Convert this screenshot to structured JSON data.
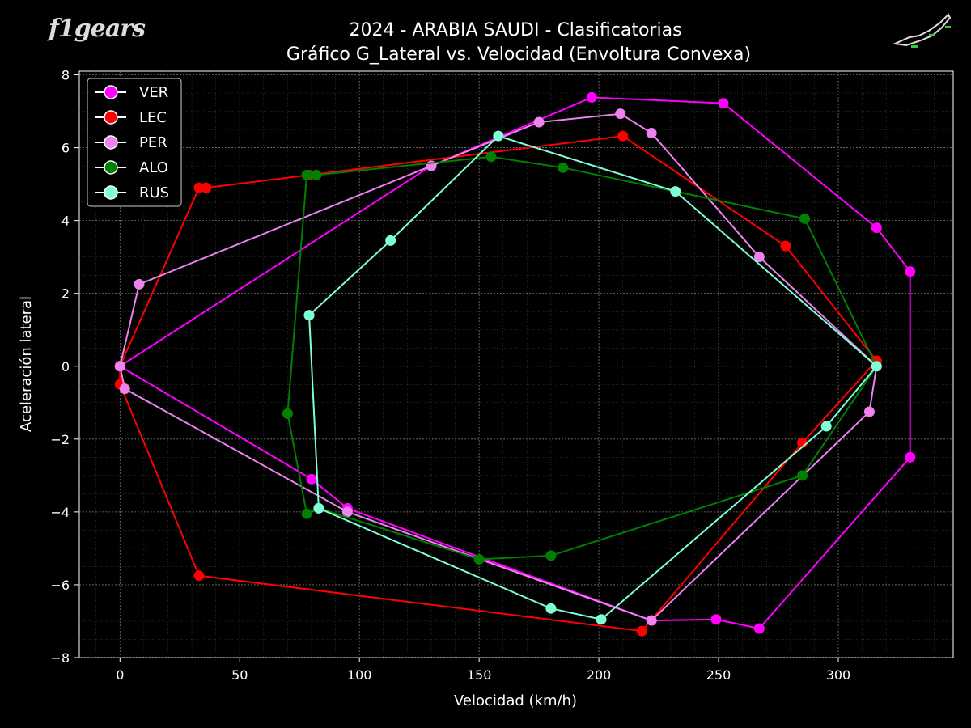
{
  "logo": {
    "text": "f1gears"
  },
  "chart_data": {
    "type": "scatter",
    "title": "2024 - ARABIA SAUDI - Clasificatorias",
    "subtitle": "Gráfico G_Lateral vs. Velocidad (Envoltura Convexa)",
    "xlabel": "Velocidad (km/h)",
    "ylabel": "Aceleración lateral",
    "xlim": [
      -17,
      348
    ],
    "ylim": [
      -8,
      8.1
    ],
    "xticks": [
      0,
      50,
      100,
      150,
      200,
      250,
      300
    ],
    "yticks": [
      -8,
      -6,
      -4,
      -2,
      0,
      2,
      4,
      6,
      8
    ],
    "grid": true,
    "legend_position": "top-left",
    "series": [
      {
        "name": "VER",
        "color": "#ff00ff",
        "hull": [
          [
            0,
            0
          ],
          [
            130,
            5.5
          ],
          [
            197,
            7.38
          ],
          [
            252,
            7.22
          ],
          [
            316,
            3.8
          ],
          [
            330,
            2.6
          ],
          [
            330,
            -2.5
          ],
          [
            267,
            -7.2
          ],
          [
            249,
            -6.95
          ],
          [
            222,
            -6.98
          ],
          [
            95,
            -3.9
          ],
          [
            80,
            -3.1
          ],
          [
            0,
            0
          ]
        ]
      },
      {
        "name": "LEC",
        "color": "#ff0000",
        "hull": [
          [
            0,
            0
          ],
          [
            33,
            4.9
          ],
          [
            36,
            4.9
          ],
          [
            79,
            5.25
          ],
          [
            210,
            6.32
          ],
          [
            278,
            3.3
          ],
          [
            316,
            0.15
          ],
          [
            285,
            -2.1
          ],
          [
            218,
            -7.27
          ],
          [
            33,
            -5.75
          ],
          [
            0,
            -0.5
          ],
          [
            0,
            0
          ]
        ]
      },
      {
        "name": "PER",
        "color": "#ee82ee",
        "hull": [
          [
            0,
            0
          ],
          [
            8,
            2.25
          ],
          [
            130,
            5.5
          ],
          [
            175,
            6.7
          ],
          [
            209,
            6.93
          ],
          [
            222,
            6.4
          ],
          [
            267,
            3.0
          ],
          [
            316,
            0
          ],
          [
            313,
            -1.25
          ],
          [
            222,
            -6.98
          ],
          [
            95,
            -4.0
          ],
          [
            2,
            -0.62
          ],
          [
            0,
            0
          ]
        ]
      },
      {
        "name": "ALO",
        "color": "#008000",
        "hull": [
          [
            70,
            -1.3
          ],
          [
            78,
            5.25
          ],
          [
            82,
            5.25
          ],
          [
            155,
            5.75
          ],
          [
            185,
            5.45
          ],
          [
            286,
            4.05
          ],
          [
            316,
            0
          ],
          [
            285,
            -3.0
          ],
          [
            180,
            -5.2
          ],
          [
            150,
            -5.3
          ],
          [
            83,
            -3.9
          ],
          [
            78,
            -4.05
          ],
          [
            70,
            -1.3
          ]
        ]
      },
      {
        "name": "RUS",
        "color": "#7fffd4",
        "hull": [
          [
            79,
            1.4
          ],
          [
            113,
            3.45
          ],
          [
            158,
            6.32
          ],
          [
            232,
            4.8
          ],
          [
            316,
            0
          ],
          [
            295,
            -1.65
          ],
          [
            201,
            -6.95
          ],
          [
            180,
            -6.65
          ],
          [
            83,
            -3.9
          ],
          [
            79,
            1.4
          ]
        ]
      }
    ]
  }
}
